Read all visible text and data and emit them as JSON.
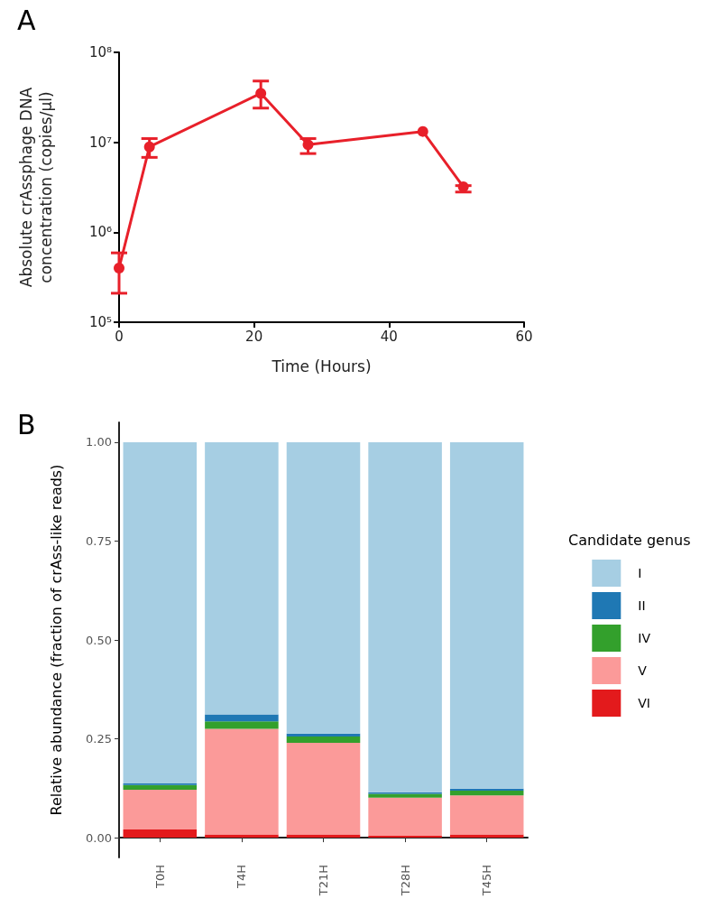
{
  "chart_data": [
    {
      "type": "line",
      "title": "A",
      "xlabel": "Time (Hours)",
      "ylabel": "Absolute crAssphage DNA\nconcentration (copies/µl)",
      "log": "y",
      "marker": "circle",
      "line_style": "solid",
      "grid": false,
      "legend": false,
      "xlim": [
        0,
        60
      ],
      "xticks": [
        0,
        20,
        40,
        60
      ],
      "ylim": [
        100000,
        100000000
      ],
      "yticks": [
        {
          "value": 100000,
          "label": "10⁵"
        },
        {
          "value": 1000000,
          "label": "10⁶"
        },
        {
          "value": 10000000,
          "label": "10⁷"
        },
        {
          "value": 100000000,
          "label": "10⁸"
        }
      ],
      "series": [
        {
          "color": "#e8202a",
          "x": [
            0,
            4.5,
            21,
            28,
            45,
            51
          ],
          "values": [
            400000,
            8900000,
            35000000,
            9400000,
            13200000,
            3200000
          ],
          "errors": [
            [
              210000,
              590000
            ],
            [
              6800000,
              11000000
            ],
            [
              24000000,
              48000000
            ],
            [
              7500000,
              11000000
            ],
            null,
            [
              2800000,
              3300000
            ]
          ]
        }
      ]
    },
    {
      "type": "bar",
      "title": "B",
      "stacked": true,
      "ylabel": "Relative abundance (fraction of crAss-like reads)",
      "legend_title": "Candidate genus",
      "legend": "right",
      "grid": false,
      "categories": [
        "T0H",
        "T4H",
        "T21H",
        "T28H",
        "T45H"
      ],
      "ylim": [
        -0.05,
        1.05
      ],
      "yticks": [
        {
          "value": 0,
          "label": "0.00"
        },
        {
          "value": 0.25,
          "label": "0.25"
        },
        {
          "value": 0.5,
          "label": "0.50"
        },
        {
          "value": 0.75,
          "label": "0.75"
        },
        {
          "value": 1,
          "label": "1.00"
        }
      ],
      "series": [
        {
          "name": "VI",
          "color": "#e31a1c",
          "values": [
            0.021,
            0.008,
            0.008,
            0.005,
            0.008
          ]
        },
        {
          "name": "V",
          "color": "#fb9a99",
          "values": [
            0.1,
            0.267,
            0.232,
            0.096,
            0.099
          ]
        },
        {
          "name": "IV",
          "color": "#33a02c",
          "values": [
            0.012,
            0.019,
            0.016,
            0.01,
            0.012
          ]
        },
        {
          "name": "II",
          "color": "#1f78b4",
          "values": [
            0.004,
            0.018,
            0.007,
            0.004,
            0.005
          ]
        },
        {
          "name": "I",
          "color": "#a6cee3",
          "values": [
            0.863,
            0.688,
            0.737,
            0.885,
            0.876
          ]
        }
      ]
    }
  ]
}
